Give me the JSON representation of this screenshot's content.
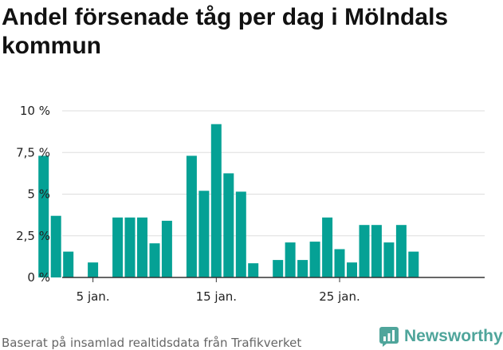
{
  "title": "Andel försenade tåg per dag i Mölndals kommun",
  "footer": "Baserat på insamlad realtidsdata från Trafikverket",
  "brand": "Newsworthy",
  "colors": {
    "bar": "#05a195",
    "grid": "#dddddd",
    "axis": "#333333",
    "brand": "#4fa59b"
  },
  "chart_data": {
    "type": "bar",
    "title": "Andel försenade tåg per dag i Mölndals kommun",
    "xlabel": "",
    "ylabel": "",
    "x": [
      1,
      2,
      3,
      4,
      5,
      6,
      7,
      8,
      9,
      10,
      11,
      12,
      13,
      14,
      15,
      16,
      17,
      18,
      19,
      20,
      21,
      22,
      23,
      24,
      25,
      26,
      27,
      28,
      29,
      30,
      31
    ],
    "values": [
      7.3,
      3.7,
      1.55,
      0,
      0.9,
      0,
      3.6,
      3.6,
      3.6,
      2.05,
      3.4,
      0,
      7.3,
      5.2,
      9.2,
      6.25,
      5.15,
      0.85,
      0,
      1.05,
      2.1,
      1.05,
      2.15,
      3.6,
      1.7,
      0.9,
      3.15,
      3.15,
      2.1,
      3.15,
      1.55
    ],
    "ylim": [
      0,
      10
    ],
    "yticks": [
      {
        "value": 0,
        "label": "0 %"
      },
      {
        "value": 2.5,
        "label": "2,5 %"
      },
      {
        "value": 5,
        "label": "5 %"
      },
      {
        "value": 7.5,
        "label": "7,5 %"
      },
      {
        "value": 10,
        "label": "10 %"
      }
    ],
    "xticks": [
      {
        "value": 5,
        "label": "5 jan."
      },
      {
        "value": 15,
        "label": "15 jan."
      },
      {
        "value": 25,
        "label": "25 jan."
      }
    ],
    "grid": true
  }
}
